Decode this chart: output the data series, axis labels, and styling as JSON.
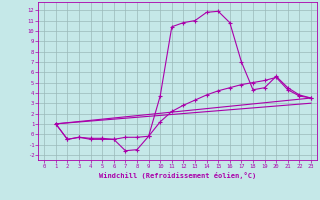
{
  "title": "",
  "xlabel": "Windchill (Refroidissement éolien,°C)",
  "background_color": "#c5e8e8",
  "grid_color": "#9bbaba",
  "line_color": "#aa00aa",
  "xlim": [
    -0.5,
    23.5
  ],
  "ylim": [
    -2.5,
    12.8
  ],
  "xticks": [
    0,
    1,
    2,
    3,
    4,
    5,
    6,
    7,
    8,
    9,
    10,
    11,
    12,
    13,
    14,
    15,
    16,
    17,
    18,
    19,
    20,
    21,
    22,
    23
  ],
  "yticks": [
    -2,
    -1,
    0,
    1,
    2,
    3,
    4,
    5,
    6,
    7,
    8,
    9,
    10,
    11,
    12
  ],
  "line1_x": [
    1,
    2,
    3,
    4,
    5,
    6,
    7,
    8,
    9,
    10,
    11,
    12,
    13,
    14,
    15,
    16,
    17,
    18,
    19,
    20,
    21,
    22,
    23
  ],
  "line1_y": [
    1.0,
    -0.5,
    -0.3,
    -0.4,
    -0.4,
    -0.5,
    -1.6,
    -1.5,
    -0.2,
    3.7,
    10.4,
    10.8,
    11.0,
    11.8,
    11.9,
    10.8,
    7.0,
    4.3,
    4.5,
    5.6,
    4.5,
    3.8,
    3.5
  ],
  "line2_x": [
    1,
    2,
    3,
    4,
    5,
    6,
    7,
    8,
    9,
    10,
    11,
    12,
    13,
    14,
    15,
    16,
    17,
    18,
    19,
    20,
    21,
    22,
    23
  ],
  "line2_y": [
    1.0,
    -0.5,
    -0.3,
    -0.5,
    -0.5,
    -0.5,
    -0.3,
    -0.3,
    -0.2,
    1.2,
    2.2,
    2.8,
    3.3,
    3.8,
    4.2,
    4.5,
    4.8,
    5.0,
    5.2,
    5.5,
    4.3,
    3.7,
    3.5
  ],
  "line3_x": [
    1,
    23
  ],
  "line3_y": [
    1.0,
    3.5
  ],
  "line4_x": [
    1,
    23
  ],
  "line4_y": [
    1.0,
    3.0
  ]
}
